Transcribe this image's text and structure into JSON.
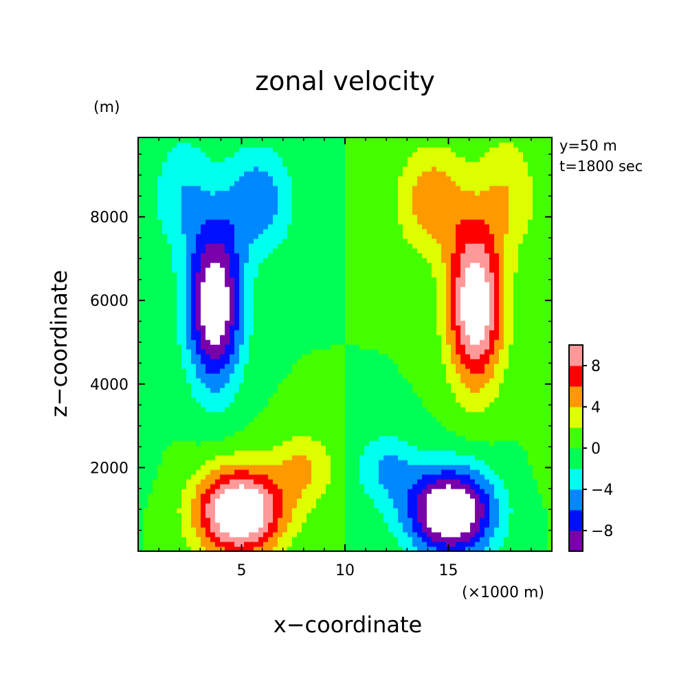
{
  "chart_data": {
    "type": "heatmap",
    "title": "zonal velocity",
    "xlabel": "x−coordinate",
    "ylabel": "z−coordinate",
    "x_unit": "(×1000 m)",
    "z_unit": "(m)",
    "annotations": [
      "y=50 m",
      "t=1800 sec"
    ],
    "xlim": [
      0,
      20
    ],
    "ylim": [
      0,
      9900
    ],
    "x_ticks": [
      5,
      10,
      15
    ],
    "x_tick_labels": [
      "5",
      "10",
      "15"
    ],
    "y_ticks": [
      2000,
      4000,
      6000,
      8000
    ],
    "y_tick_labels": [
      "2000",
      "4000",
      "6000",
      "8000"
    ],
    "colorbar": {
      "levels": [
        -10,
        -8,
        -6,
        -4,
        -2,
        0,
        2,
        4,
        6,
        8,
        10
      ],
      "tick_labels": [
        "8",
        "4",
        "0",
        "−4",
        "−8"
      ],
      "tick_values": [
        8,
        4,
        0,
        -4,
        -8
      ],
      "colors": [
        "#7a00aa",
        "#0010ff",
        "#0088ff",
        "#00ffee",
        "#00ff55",
        "#44ff00",
        "#ddff00",
        "#ff9900",
        "#ff0000",
        "#ff9999"
      ],
      "over_color": "#ffffff",
      "under_color": "#ffffff"
    },
    "field": {
      "description_units": "zonal velocity u (x in 1000 m, z in m); antisymmetric about x=10",
      "features": [
        {
          "x": 3.9,
          "z": 5200,
          "u": -12
        },
        {
          "x": 3.4,
          "z": 7600,
          "u": -9
        },
        {
          "x": 4.9,
          "z": 1300,
          "u": 12
        },
        {
          "x": 4.6,
          "z": 2100,
          "u": 8
        },
        {
          "x": 7.0,
          "z": 9200,
          "u": -7
        },
        {
          "x": 9.0,
          "z": 3800,
          "u": 0
        }
      ]
    }
  }
}
